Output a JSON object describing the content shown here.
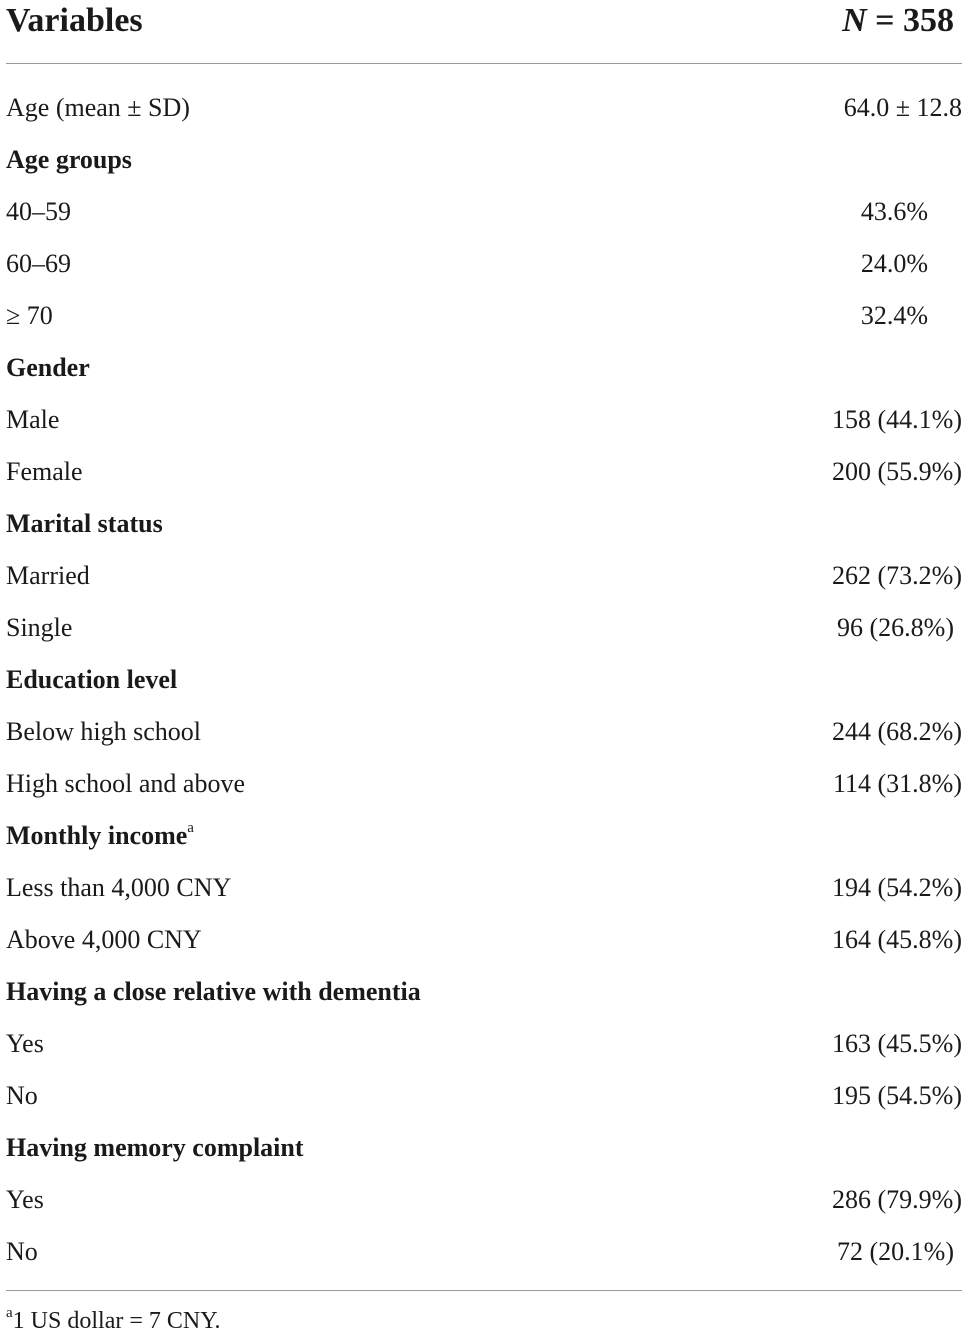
{
  "header": {
    "variables_label": "Variables",
    "n_var": "N",
    "n_rest": " = 358"
  },
  "rows": [
    {
      "label": "Age (mean ± SD)",
      "value": "64.0 ± 12.8",
      "section": false
    },
    {
      "label": "Age groups",
      "value": "",
      "section": true
    },
    {
      "label": "40–59",
      "value": "43.6%",
      "section": false
    },
    {
      "label": "60–69",
      "value": "24.0%",
      "section": false
    },
    {
      "label": "≥ 70",
      "value": "32.4%",
      "section": false
    },
    {
      "label": "Gender",
      "value": "",
      "section": true
    },
    {
      "label": "Male",
      "value": "158 (44.1%)",
      "section": false
    },
    {
      "label": "Female",
      "value": "200 (55.9%)",
      "section": false
    },
    {
      "label": "Marital status",
      "value": "",
      "section": true
    },
    {
      "label": "Married",
      "value": "262 (73.2%)",
      "section": false
    },
    {
      "label": "Single",
      "value": "96 (26.8%)",
      "section": false
    },
    {
      "label": "Education level",
      "value": "",
      "section": true
    },
    {
      "label": "Below high school",
      "value": "244 (68.2%)",
      "section": false
    },
    {
      "label": "High school and above",
      "value": "114 (31.8%)",
      "section": false
    },
    {
      "label": "Monthly income",
      "sup": "a",
      "value": "",
      "section": true
    },
    {
      "label": "Less than 4,000 CNY",
      "value": "194 (54.2%)",
      "section": false
    },
    {
      "label": "Above 4,000 CNY",
      "value": "164 (45.8%)",
      "section": false
    },
    {
      "label": "Having a close relative with dementia",
      "value": "",
      "section": true
    },
    {
      "label": "Yes",
      "value": "163 (45.5%)",
      "section": false
    },
    {
      "label": "No",
      "value": "195 (54.5%)",
      "section": false
    },
    {
      "label": "Having memory complaint",
      "value": "",
      "section": true
    },
    {
      "label": "Yes",
      "value": "286 (79.9%)",
      "section": false
    },
    {
      "label": "No",
      "value": "72 (20.1%)",
      "section": false
    }
  ],
  "footnote": {
    "marker": "a",
    "text": "1 US dollar = 7 CNY."
  }
}
